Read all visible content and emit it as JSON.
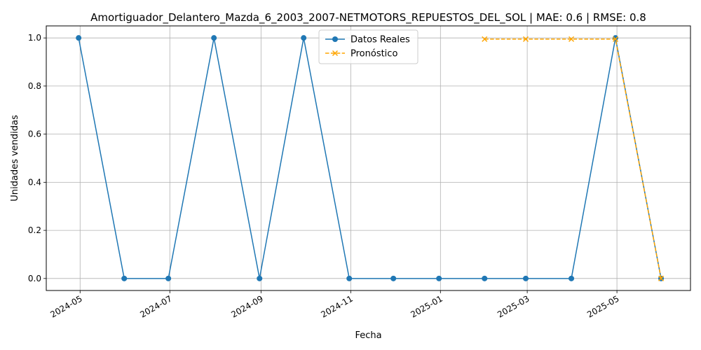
{
  "chart_data": {
    "type": "line",
    "title": "Amortiguador_Delantero_Mazda_6_2003_2007-NETMOTORS_REPUESTOS_DEL_SOL | MAE: 0.6 | RMSE: 0.8",
    "xlabel": "Fecha",
    "ylabel": "Unidades vendidas",
    "xlim": [
      "2024-04-08",
      "2025-06-20"
    ],
    "ylim": [
      -0.05,
      1.05
    ],
    "grid": true,
    "legend_position": "upper-center",
    "x_ticks": [
      "2024-05",
      "2024-07",
      "2024-09",
      "2024-11",
      "2025-01",
      "2025-03",
      "2025-05"
    ],
    "y_ticks": [
      "0.0",
      "0.2",
      "0.4",
      "0.6",
      "0.8",
      "1.0"
    ],
    "series": [
      {
        "name": "Datos Reales",
        "color": "#1f77b4",
        "line_style": "solid",
        "marker": "circle",
        "x": [
          "2024-04-30",
          "2024-05-31",
          "2024-06-30",
          "2024-07-31",
          "2024-08-31",
          "2024-09-30",
          "2024-10-31",
          "2024-11-30",
          "2024-12-31",
          "2025-01-31",
          "2025-02-28",
          "2025-03-31",
          "2025-04-30",
          "2025-05-31"
        ],
        "values": [
          1,
          0,
          0,
          1,
          0,
          1,
          0,
          0,
          0,
          0,
          0,
          0,
          1,
          0
        ]
      },
      {
        "name": "Pronóstico",
        "color": "#ffa500",
        "line_style": "dashed",
        "marker": "x",
        "x": [
          "2025-01-31",
          "2025-02-28",
          "2025-03-31",
          "2025-04-30",
          "2025-05-31"
        ],
        "values": [
          0.995,
          0.995,
          0.995,
          0.995,
          0
        ]
      }
    ]
  }
}
